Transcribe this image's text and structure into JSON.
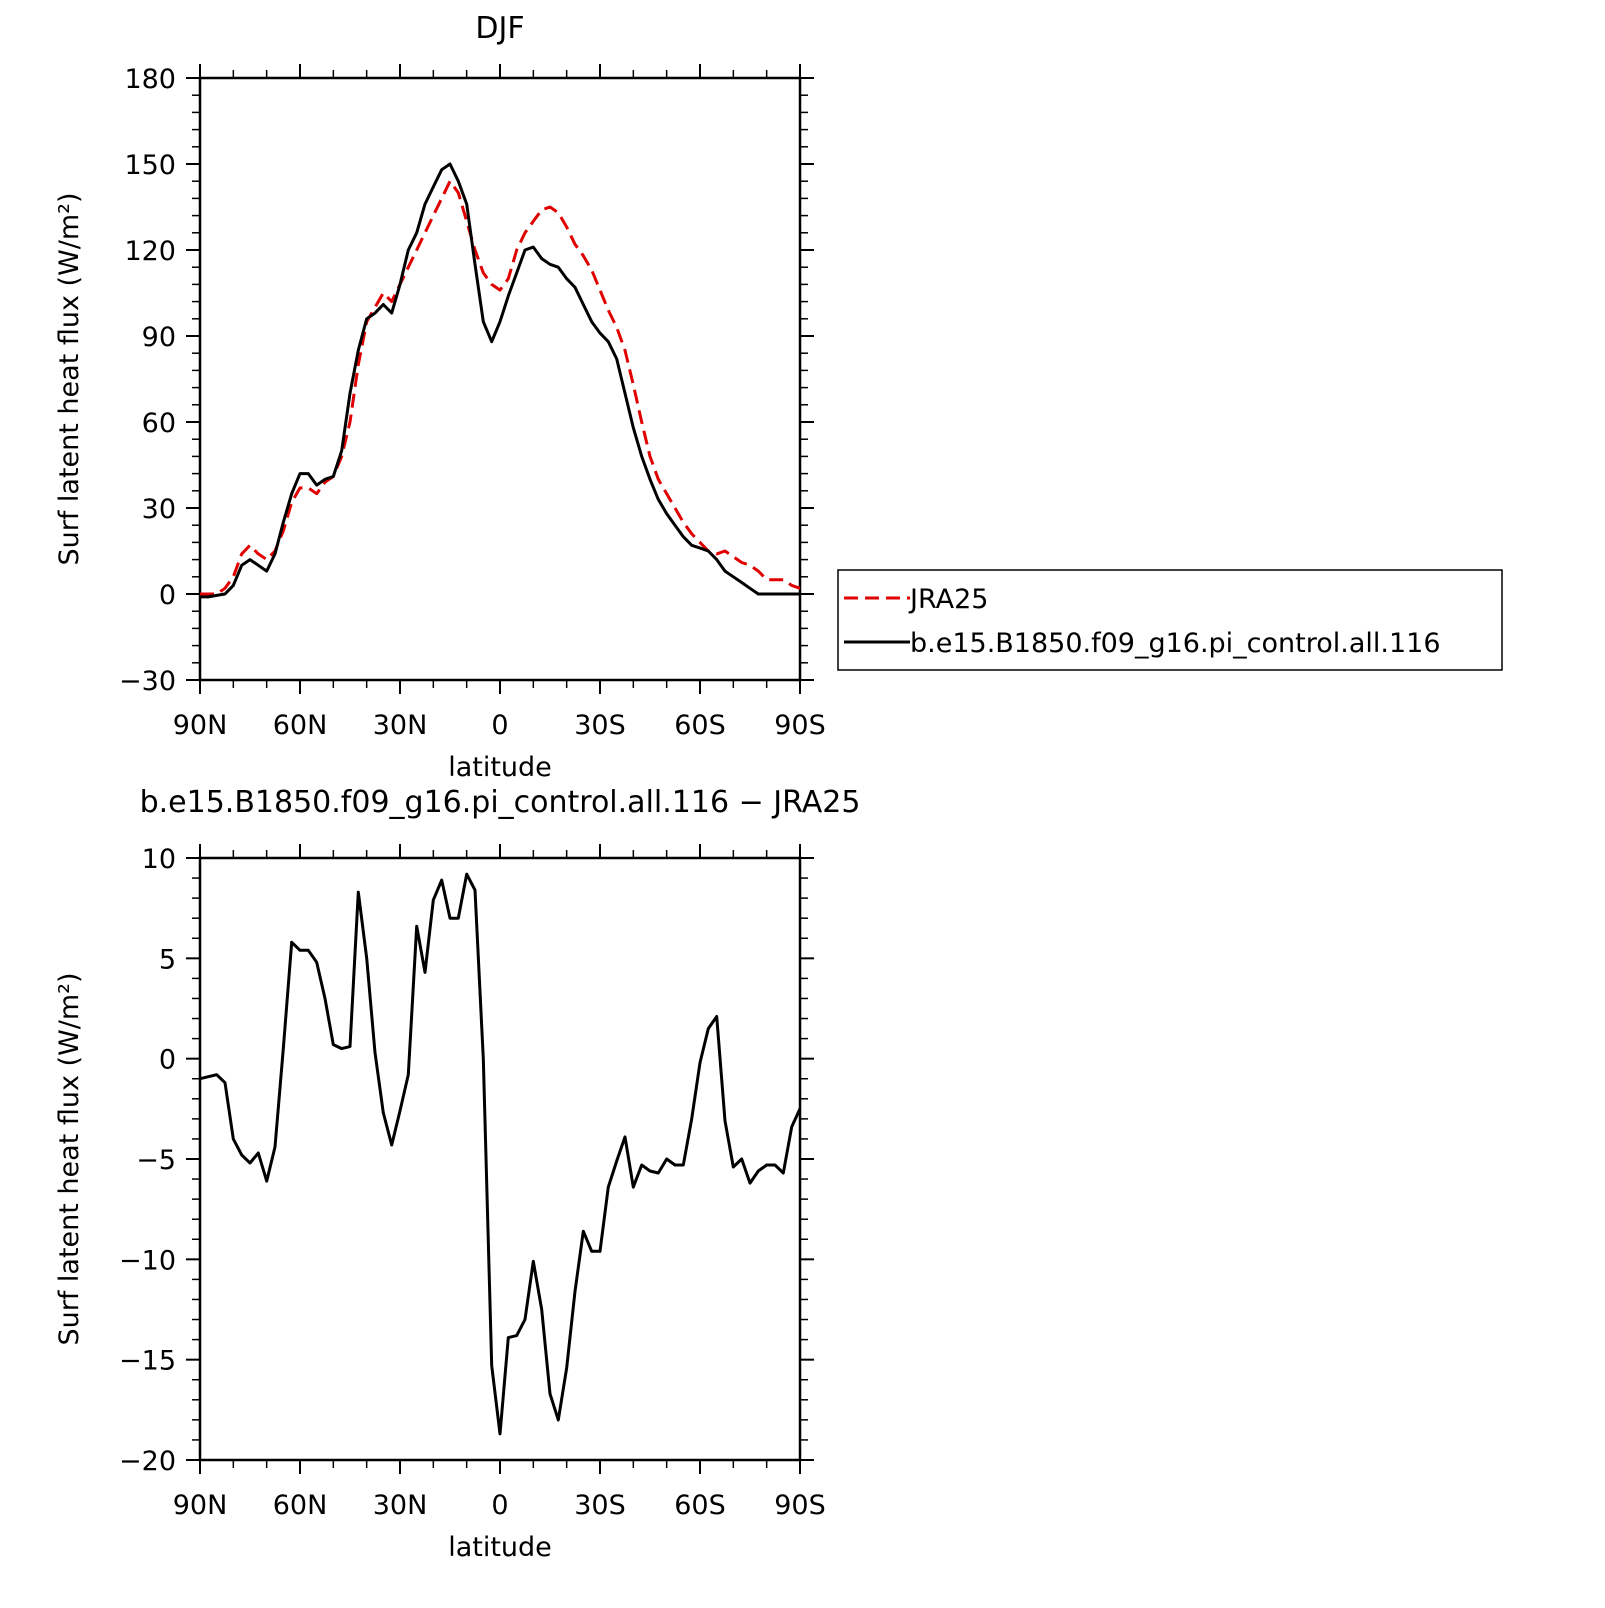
{
  "chart_data": [
    {
      "type": "line",
      "title": "DJF",
      "xlabel": "latitude",
      "ylabel": "Surf latent heat flux (W/m²)",
      "xlim": [
        -90,
        90
      ],
      "ylim": [
        -30,
        180
      ],
      "xticks": [
        -90,
        -60,
        -30,
        0,
        30,
        60,
        90
      ],
      "xtick_labels": [
        "90N",
        "60N",
        "30N",
        "0",
        "30S",
        "60S",
        "90S"
      ],
      "yticks": [
        -30,
        0,
        30,
        60,
        90,
        120,
        150,
        180
      ],
      "ytick_labels": [
        "−30",
        "0",
        "30",
        "60",
        "90",
        "120",
        "150",
        "180"
      ],
      "grid": false,
      "legend_position": "right",
      "series": [
        {
          "name": "JRA25",
          "color": "#e00000",
          "dash": "dashed",
          "x": [
            -90,
            -87.5,
            -85,
            -82.5,
            -80,
            -77.5,
            -75,
            -72.5,
            -70,
            -67.5,
            -65,
            -62.5,
            -60,
            -57.5,
            -55,
            -52.5,
            -50,
            -47.5,
            -45,
            -42.5,
            -40,
            -37.5,
            -35,
            -32.5,
            -30,
            -27.5,
            -25,
            -22.5,
            -20,
            -17.5,
            -15,
            -12.5,
            -10,
            -7.5,
            -5,
            -2.5,
            0,
            2.5,
            5,
            7.5,
            10,
            12.5,
            15,
            17.5,
            20,
            22.5,
            25,
            27.5,
            30,
            32.5,
            35,
            37.5,
            40,
            42.5,
            45,
            47.5,
            50,
            52.5,
            55,
            57.5,
            60,
            62.5,
            65,
            67.5,
            70,
            72.5,
            75,
            77.5,
            80,
            82.5,
            85,
            87.5,
            90
          ],
          "y": [
            0,
            0,
            0,
            2,
            6,
            14,
            17,
            14,
            12,
            15,
            22,
            32,
            37,
            37,
            35,
            39,
            41,
            48,
            60,
            80,
            95,
            100,
            105,
            102,
            108,
            114,
            120,
            126,
            132,
            138,
            144,
            140,
            130,
            120,
            112,
            108,
            106,
            110,
            120,
            126,
            130,
            134,
            135,
            133,
            128,
            122,
            118,
            113,
            106,
            99,
            93,
            85,
            73,
            60,
            48,
            40,
            35,
            30,
            25,
            21,
            18,
            15,
            14,
            15,
            13,
            11,
            10,
            8,
            5,
            5,
            5,
            3,
            2
          ],
          "values": [
            0,
            0,
            0,
            2,
            6,
            14,
            17,
            14,
            12,
            15,
            22,
            32,
            37,
            37,
            35,
            39,
            41,
            48,
            60,
            80,
            95,
            100,
            105,
            102,
            108,
            114,
            120,
            126,
            132,
            138,
            144,
            140,
            130,
            120,
            112,
            108,
            106,
            110,
            120,
            126,
            130,
            134,
            135,
            133,
            128,
            122,
            118,
            113,
            106,
            99,
            93,
            85,
            73,
            60,
            48,
            40,
            35,
            30,
            25,
            21,
            18,
            15,
            14,
            15,
            13,
            11,
            10,
            8,
            5,
            5,
            5,
            3,
            2
          ]
        },
        {
          "name": "b.e15.B1850.f09_g16.pi_control.all.116",
          "color": "#000000",
          "dash": "solid",
          "x": [
            -90,
            -87.5,
            -85,
            -82.5,
            -80,
            -77.5,
            -75,
            -72.5,
            -70,
            -67.5,
            -65,
            -62.5,
            -60,
            -57.5,
            -55,
            -52.5,
            -50,
            -47.5,
            -45,
            -42.5,
            -40,
            -37.5,
            -35,
            -32.5,
            -30,
            -27.5,
            -25,
            -22.5,
            -20,
            -17.5,
            -15,
            -12.5,
            -10,
            -7.5,
            -5,
            -2.5,
            0,
            2.5,
            5,
            7.5,
            10,
            12.5,
            15,
            17.5,
            20,
            22.5,
            25,
            27.5,
            30,
            32.5,
            35,
            37.5,
            40,
            42.5,
            45,
            47.5,
            50,
            52.5,
            55,
            57.5,
            60,
            62.5,
            65,
            67.5,
            70,
            72.5,
            75,
            77.5,
            80,
            82.5,
            85,
            87.5,
            90
          ],
          "y": [
            -1,
            -1,
            -0.5,
            0,
            3,
            10,
            12,
            10,
            8,
            14,
            25,
            35,
            42,
            42,
            38,
            40,
            41,
            50,
            70,
            85,
            96,
            98,
            101,
            98,
            108,
            120,
            126,
            136,
            142,
            148,
            150,
            144,
            136,
            115,
            95,
            88,
            95,
            104,
            112,
            120,
            121,
            117,
            115,
            114,
            110,
            107,
            101,
            95,
            91,
            88,
            82,
            70,
            58,
            48,
            40,
            33,
            28,
            24,
            20,
            17,
            16,
            15,
            12,
            8,
            6,
            4,
            2,
            0,
            0,
            0,
            0,
            0,
            0
          ],
          "values": [
            -1,
            -1,
            -0.5,
            0,
            3,
            10,
            12,
            10,
            8,
            14,
            25,
            35,
            42,
            42,
            38,
            40,
            41,
            50,
            70,
            85,
            96,
            98,
            101,
            98,
            108,
            120,
            126,
            136,
            142,
            148,
            150,
            144,
            136,
            115,
            95,
            88,
            95,
            104,
            112,
            120,
            121,
            117,
            115,
            114,
            110,
            107,
            101,
            95,
            91,
            88,
            82,
            70,
            58,
            48,
            40,
            33,
            28,
            24,
            20,
            17,
            16,
            15,
            12,
            8,
            6,
            4,
            2,
            0,
            0,
            0,
            0,
            0,
            0
          ]
        }
      ]
    },
    {
      "type": "line",
      "title": "b.e15.B1850.f09_g16.pi_control.all.116 − JRA25",
      "xlabel": "latitude",
      "ylabel": "Surf latent heat flux (W/m²)",
      "xlim": [
        -90,
        90
      ],
      "ylim": [
        -20,
        10
      ],
      "xticks": [
        -90,
        -60,
        -30,
        0,
        30,
        60,
        90
      ],
      "xtick_labels": [
        "90N",
        "60N",
        "30N",
        "0",
        "30S",
        "60S",
        "90S"
      ],
      "yticks": [
        -20,
        -15,
        -10,
        -5,
        0,
        5,
        10
      ],
      "ytick_labels": [
        "−20",
        "−15",
        "−10",
        "−5",
        "0",
        "5",
        "10"
      ],
      "grid": false,
      "series": [
        {
          "color": "#000000",
          "dash": "solid",
          "x": [
            -90,
            -87.5,
            -85,
            -82.5,
            -80,
            -77.5,
            -75,
            -72.5,
            -70,
            -67.5,
            -65,
            -62.5,
            -60,
            -57.5,
            -55,
            -52.5,
            -50,
            -47.5,
            -45,
            -42.5,
            -40,
            -37.5,
            -35,
            -32.5,
            -30,
            -27.5,
            -25,
            -22.5,
            -20,
            -17.5,
            -15,
            -12.5,
            -10,
            -7.5,
            -5,
            -2.5,
            0,
            2.5,
            5,
            7.5,
            10,
            12.5,
            15,
            17.5,
            20,
            22.5,
            25,
            27.5,
            30,
            32.5,
            35,
            37.5,
            40,
            42.5,
            45,
            47.5,
            50,
            52.5,
            55,
            57.5,
            60,
            62.5,
            65,
            67.5,
            70,
            72.5,
            75,
            77.5,
            80,
            82.5,
            85,
            87.5,
            90
          ],
          "y": [
            -1,
            -0.9,
            -0.8,
            -1.2,
            -4,
            -4.8,
            -5.2,
            -4.7,
            -6.1,
            -4.4,
            0.5,
            5.8,
            5.4,
            5.4,
            4.8,
            3,
            0.7,
            0.5,
            0.6,
            8.3,
            5,
            0.3,
            -2.7,
            -4.3,
            -2.6,
            -0.8,
            6.6,
            4.3,
            7.9,
            8.9,
            7,
            7,
            9.2,
            8.4,
            0,
            -15.3,
            -18.7,
            -13.9,
            -13.8,
            -13,
            -10.1,
            -12.5,
            -16.7,
            -18,
            -15.4,
            -11.6,
            -8.6,
            -9.6,
            -9.6,
            -6.4,
            -5.1,
            -3.9,
            -6.4,
            -5.3,
            -5.6,
            -5.7,
            -5,
            -5.3,
            -5.3,
            -3,
            -0.2,
            1.5,
            2.1,
            -3.1,
            -5.4,
            -5,
            -6.2,
            -5.6,
            -5.3,
            -5.3,
            -5.7,
            -3.4,
            -2.5
          ],
          "values": [
            -1,
            -0.9,
            -0.8,
            -1.2,
            -4,
            -4.8,
            -5.2,
            -4.7,
            -6.1,
            -4.4,
            0.5,
            5.8,
            5.4,
            5.4,
            4.8,
            3,
            0.7,
            0.5,
            0.6,
            8.3,
            5,
            0.3,
            -2.7,
            -4.3,
            -2.6,
            -0.8,
            6.6,
            4.3,
            7.9,
            8.9,
            7,
            7,
            9.2,
            8.4,
            0,
            -15.3,
            -18.7,
            -13.9,
            -13.8,
            -13,
            -10.1,
            -12.5,
            -16.7,
            -18,
            -15.4,
            -11.6,
            -8.6,
            -9.6,
            -9.6,
            -6.4,
            -5.1,
            -3.9,
            -6.4,
            -5.3,
            -5.6,
            -5.7,
            -5,
            -5.3,
            -5.3,
            -3,
            -0.2,
            1.5,
            2.1,
            -3.1,
            -5.4,
            -5,
            -6.2,
            -5.6,
            -5.3,
            -5.3,
            -5.7,
            -3.4,
            -2.5
          ]
        }
      ]
    }
  ]
}
